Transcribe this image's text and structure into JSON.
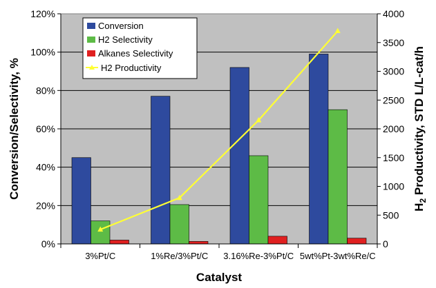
{
  "chart_data": {
    "type": "bar",
    "categories": [
      "3%Pt/C",
      "1%Re/3%Pt/C",
      "3.16%Re-3%Pt/C",
      "5wt%Pt-3wt%Re/C"
    ],
    "series": [
      {
        "name": "Conversion",
        "axis": "left",
        "kind": "bar",
        "color": "#2E4A9E",
        "values": [
          45,
          77,
          92,
          99
        ]
      },
      {
        "name": "H2 Selectivity",
        "axis": "left",
        "kind": "bar",
        "color": "#5DBB46",
        "values": [
          12,
          20.5,
          46,
          70
        ]
      },
      {
        "name": "Alkanes Selectivity",
        "axis": "left",
        "kind": "bar",
        "color": "#E02020",
        "values": [
          2,
          1.3,
          4,
          3
        ]
      },
      {
        "name": "H2 Productivity",
        "axis": "right",
        "kind": "line",
        "color": "#FFFF33",
        "values": [
          250,
          800,
          2150,
          3700
        ]
      }
    ],
    "xlabel": "Catalyst",
    "ylabel": "Conversion/Selectivity, %",
    "y2label_parts": [
      "H",
      "2",
      " Productivity, STD L/L-cat/h"
    ],
    "ylim": [
      0,
      120
    ],
    "y2lim": [
      0,
      4000
    ],
    "yticks": [
      "0%",
      "20%",
      "40%",
      "60%",
      "80%",
      "100%",
      "120%"
    ],
    "y2ticks": [
      "0",
      "500",
      "1000",
      "1500",
      "2000",
      "2500",
      "3000",
      "3500",
      "4000"
    ],
    "grid": "horizontal",
    "legend_position": "top-left",
    "plot_background": "#C0C0C0"
  }
}
